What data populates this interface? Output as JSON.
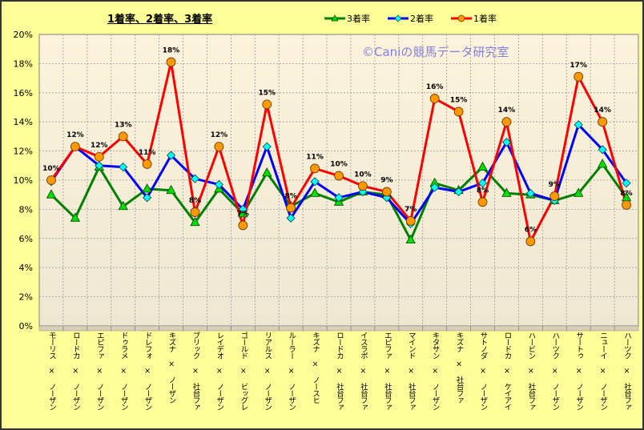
{
  "chart_data": {
    "type": "line",
    "title": "1着率、2着率、3着率",
    "watermark": "©Caniの競馬データ研究室",
    "xlabel": "",
    "ylabel": "",
    "ylim": [
      0,
      20
    ],
    "yticks": [
      "0%",
      "2%",
      "4%",
      "6%",
      "8%",
      "10%",
      "12%",
      "14%",
      "16%",
      "18%",
      "20%"
    ],
    "grid": true,
    "legend_position": "top-right",
    "categories": [
      "モーリス × ノーザン",
      "ロードカ × ノーザン",
      "エピファ × ノーザン",
      "ドゥラメ × ノーザン",
      "ドレフォ × ノーザン",
      "キズナ × ノーザン",
      "ブリック × 社台ファ",
      "レイデオ × ノーザン",
      "ゴールド × ビッグレ",
      "リアルス × ノーザン",
      "ルーラー × ノーザン",
      "キズナ × ノースヒ",
      "ロードカ × 社台ファ",
      "イスラボ × 社台ファ",
      "エピファ × 社台ファ",
      "マインド × 社台ファ",
      "キタサン × ノーザン",
      "キズナ × 社台ファ",
      "サトノダ × ノーザン",
      "ロードカ × ケイアイ",
      "ハービン × 社台ファ",
      "ハーツク × ノーザン",
      "サートゥ × ノーザン",
      "ニューイ × ノーザン",
      "ハーツク × 社台ファ"
    ],
    "series": [
      {
        "name": "3着率",
        "color": "#008000",
        "marker": "triangle",
        "values": [
          9.0,
          7.4,
          10.9,
          8.2,
          9.4,
          9.3,
          7.1,
          9.4,
          7.7,
          10.5,
          8.2,
          9.1,
          8.5,
          9.2,
          9.0,
          5.9,
          9.8,
          9.3,
          10.9,
          9.1,
          9.0,
          8.6,
          9.1,
          11.1,
          8.8
        ]
      },
      {
        "name": "2着率",
        "color": "#0000FF",
        "marker": "diamond",
        "values": [
          9.9,
          12.3,
          11.0,
          10.9,
          8.8,
          11.7,
          10.1,
          9.7,
          8.0,
          12.3,
          7.4,
          9.9,
          8.8,
          9.2,
          8.8,
          7.0,
          9.5,
          9.2,
          9.8,
          12.6,
          9.1,
          8.6,
          13.8,
          12.1,
          9.8
        ]
      },
      {
        "name": "1着率",
        "color": "#FF0000",
        "marker": "circle",
        "values": [
          10.0,
          12.3,
          11.6,
          13.0,
          11.1,
          18.1,
          7.8,
          12.3,
          6.9,
          15.2,
          8.1,
          10.8,
          10.3,
          9.6,
          9.2,
          7.2,
          15.6,
          14.7,
          8.5,
          14.0,
          5.8,
          8.9,
          17.1,
          14.0,
          8.3
        ],
        "data_labels": [
          "10%",
          "12%",
          "12%",
          "13%",
          "11%",
          "18%",
          "8%",
          "12%",
          "7%",
          "15%",
          "8%",
          "11%",
          "10%",
          "10%",
          "9%",
          "7%",
          "16%",
          "15%",
          "8%",
          "14%",
          "6%",
          "9%",
          "17%",
          "14%",
          "8%"
        ]
      }
    ]
  }
}
